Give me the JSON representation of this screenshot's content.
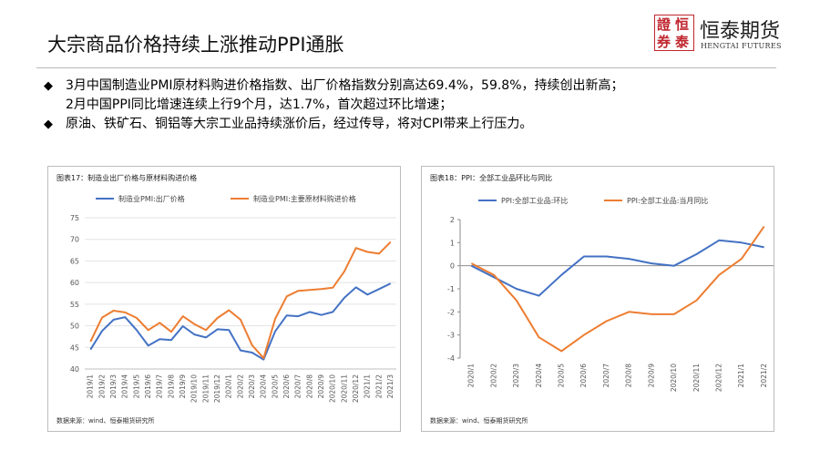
{
  "slide": {
    "title": "大宗商品价格持续上涨推动PPI通胀",
    "logo": {
      "seal_chars": [
        "證",
        "恒",
        "券",
        "泰"
      ],
      "name": "恒泰期货",
      "subtitle": "HENGTAI FUTURES"
    },
    "bullets": [
      {
        "symbol": "◆",
        "lines": [
          "3月中国制造业PMI原材料购进价格指数、出厂价格指数分别高达69.4%，59.8%，持续创出新高；",
          "2月中国PPI同比增速连续上行9个月，达1.7%，首次超过环比增速；"
        ]
      },
      {
        "symbol": "◆",
        "lines": [
          "原油、铁矿石、铜铝等大宗工业品持续涨价后，经过传导，将对CPI带来上行压力。"
        ]
      }
    ],
    "charts_meta": [
      {
        "caption": "图表17：制造业出厂价格与原材料购进价格",
        "source": "数据来源：wind、恒泰期货研究所"
      },
      {
        "caption": "图表18：PPI：全部工业品环比与同比",
        "source": "数据来源：wind、恒泰期货研究所"
      }
    ]
  },
  "chart_data": [
    {
      "type": "line",
      "title": "",
      "xlabel": "",
      "ylabel": "",
      "ylim": [
        40,
        75
      ],
      "yticks": [
        40,
        45,
        50,
        55,
        60,
        65,
        70,
        75
      ],
      "grid": true,
      "legend_position": "top",
      "categories": [
        "2019/1",
        "2019/2",
        "2019/3",
        "2019/4",
        "2019/5",
        "2019/6",
        "2019/7",
        "2019/8",
        "2019/9",
        "2019/10",
        "2019/11",
        "2019/12",
        "2020/1",
        "2020/2",
        "2020/3",
        "2020/4",
        "2020/5",
        "2020/6",
        "2020/7",
        "2020/8",
        "2020/9",
        "2020/10",
        "2020/11",
        "2020/12",
        "2021/1",
        "2021/2",
        "2021/3"
      ],
      "series": [
        {
          "name": "制造业PMI:出厂价格",
          "color": "#4472c4",
          "values": [
            44.5,
            48.8,
            51.4,
            52.0,
            49.0,
            45.4,
            46.9,
            46.7,
            49.9,
            48.0,
            47.3,
            49.2,
            49.0,
            44.3,
            43.8,
            42.2,
            48.7,
            52.4,
            52.2,
            53.2,
            52.5,
            53.2,
            56.5,
            58.9,
            57.2,
            58.5,
            59.8
          ]
        },
        {
          "name": "制造业PMI:主要原材料购进价格",
          "color": "#ed7d31",
          "values": [
            46.3,
            51.9,
            53.5,
            53.1,
            51.8,
            49.0,
            50.7,
            48.6,
            52.2,
            50.4,
            49.0,
            51.8,
            53.6,
            51.4,
            45.5,
            42.5,
            51.6,
            56.8,
            58.1,
            58.3,
            58.5,
            58.8,
            62.6,
            68.0,
            67.1,
            66.7,
            69.4
          ]
        }
      ]
    },
    {
      "type": "line",
      "title": "",
      "xlabel": "",
      "ylabel": "",
      "ylim": [
        -4,
        2
      ],
      "yticks": [
        -4,
        -3,
        -2,
        -1,
        0,
        1,
        2
      ],
      "grid": false,
      "legend_position": "top",
      "categories": [
        "2020/1",
        "2020/2",
        "2020/3",
        "2020/4",
        "2020/5",
        "2020/6",
        "2020/7",
        "2020/8",
        "2020/9",
        "2020/10",
        "2020/11",
        "2020/12",
        "2021/1",
        "2021/2"
      ],
      "series": [
        {
          "name": "PPI:全部工业品:环比",
          "color": "#4472c4",
          "values": [
            0.0,
            -0.5,
            -1.0,
            -1.3,
            -0.4,
            0.4,
            0.4,
            0.3,
            0.1,
            0.0,
            0.5,
            1.1,
            1.0,
            0.8
          ]
        },
        {
          "name": "PPI:全部工业品:当月同比",
          "color": "#ed7d31",
          "values": [
            0.1,
            -0.4,
            -1.5,
            -3.1,
            -3.7,
            -3.0,
            -2.4,
            -2.0,
            -2.1,
            -2.1,
            -1.5,
            -0.4,
            0.3,
            1.7
          ]
        }
      ]
    }
  ]
}
